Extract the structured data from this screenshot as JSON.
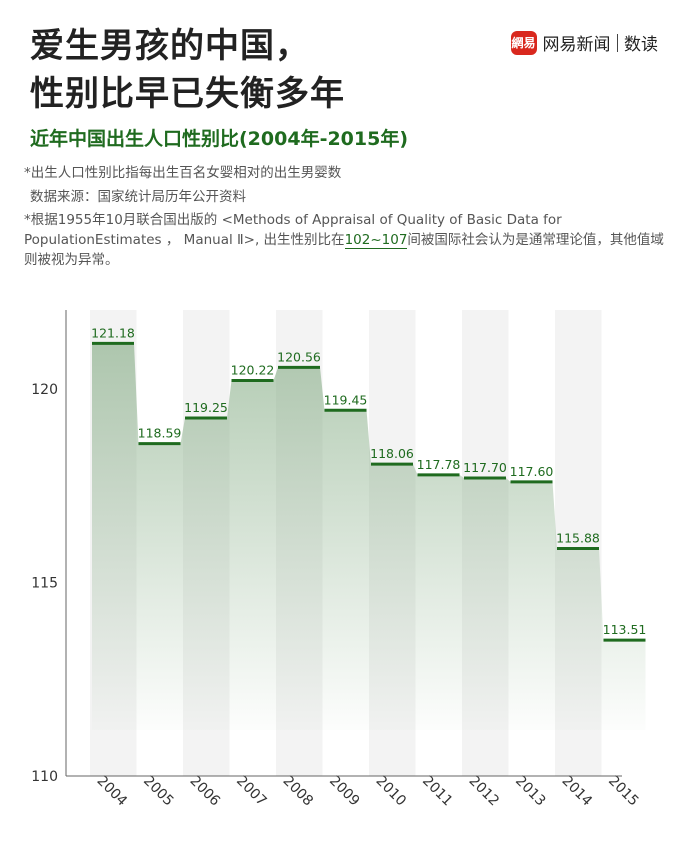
{
  "title_line1": "爱生男孩的中国，",
  "title_line2": "性别比早已失衡多年",
  "brand": {
    "logo_text": "網易",
    "name": "网易新闻",
    "sub": "数读"
  },
  "subtitle": "近年中国出生人口性别比(2004年-2015年)",
  "notes": {
    "line1": "*出生人口性别比指每出生百名女婴相对的出生男婴数",
    "line2": "数据来源：国家统计局历年公开资料",
    "line3_pre": "*根据1955年10月联合国出版的 <Methods of Appraisal of Quality of Basic Data for PopulationEstimates ， Manual Ⅱ>, 出生性别比在",
    "line3_hl": "102~107",
    "line3_post": "间被国际社会认为是通常理论值，其他值域则被视为异常。"
  },
  "colors": {
    "accent": "#1f6b1f",
    "brand": "#d9281e"
  },
  "chart_data": {
    "type": "bar",
    "categories": [
      "2004",
      "2005",
      "2006",
      "2007",
      "2008",
      "2009",
      "2010",
      "2011",
      "2012",
      "2013",
      "2014",
      "2015"
    ],
    "values": [
      121.18,
      118.59,
      119.25,
      120.22,
      120.56,
      119.45,
      118.06,
      117.78,
      117.7,
      117.6,
      115.88,
      113.51
    ],
    "value_labels": [
      "121.18",
      "118.59",
      "119.25",
      "120.22",
      "120.56",
      "119.45",
      "118.06",
      "117.78",
      "117.70",
      "117.60",
      "115.88",
      "113.51"
    ],
    "yticks": [
      "110",
      "115",
      "120"
    ],
    "ytick_values": [
      110,
      115,
      120
    ],
    "ylim": [
      110,
      122
    ],
    "grid": "vertical bands"
  }
}
